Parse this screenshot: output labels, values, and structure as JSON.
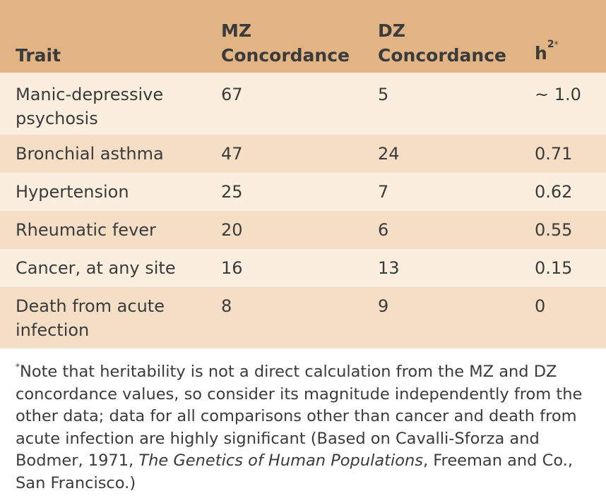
{
  "table": {
    "headers": {
      "trait": "Trait",
      "mz_line1": "MZ",
      "mz_line2": "Concordance",
      "dz_line1": "DZ",
      "dz_line2": "Concordance",
      "h2_base": "h",
      "h2_exp": "2",
      "h2_mark": "*"
    },
    "rows": [
      {
        "trait": "Manic-depressive psychosis",
        "mz": "67",
        "dz": "5",
        "h2": "~ 1.0"
      },
      {
        "trait": "Bronchial asthma",
        "mz": "47",
        "dz": "24",
        "h2": "0.71"
      },
      {
        "trait": "Hypertension",
        "mz": "25",
        "dz": "7",
        "h2": "0.62"
      },
      {
        "trait": "Rheumatic fever",
        "mz": "20",
        "dz": "6",
        "h2": "0.55"
      },
      {
        "trait": "Cancer, at any site",
        "mz": "16",
        "dz": "13",
        "h2": "0.15"
      },
      {
        "trait": "Death from acute infection",
        "mz": "8",
        "dz": "9",
        "h2": "0"
      }
    ]
  },
  "footnote": {
    "mark": "*",
    "text_before": "Note that heritability is not a direct calculation from the MZ and DZ concordance values, so consider its magnitude independently from the other data; data for all comparisons other than cancer and death from acute infection are highly significant (Based on Cavalli-Sforza and Bodmer, 1971, ",
    "book_title": "The Genetics of Human Populations",
    "text_after": ", Freeman and Co., San Francisco.)"
  },
  "colors": {
    "header_bg": "#e2b483",
    "row_light": "#faeede",
    "row_dark": "#f4dec6",
    "text": "#3b3b3b"
  }
}
